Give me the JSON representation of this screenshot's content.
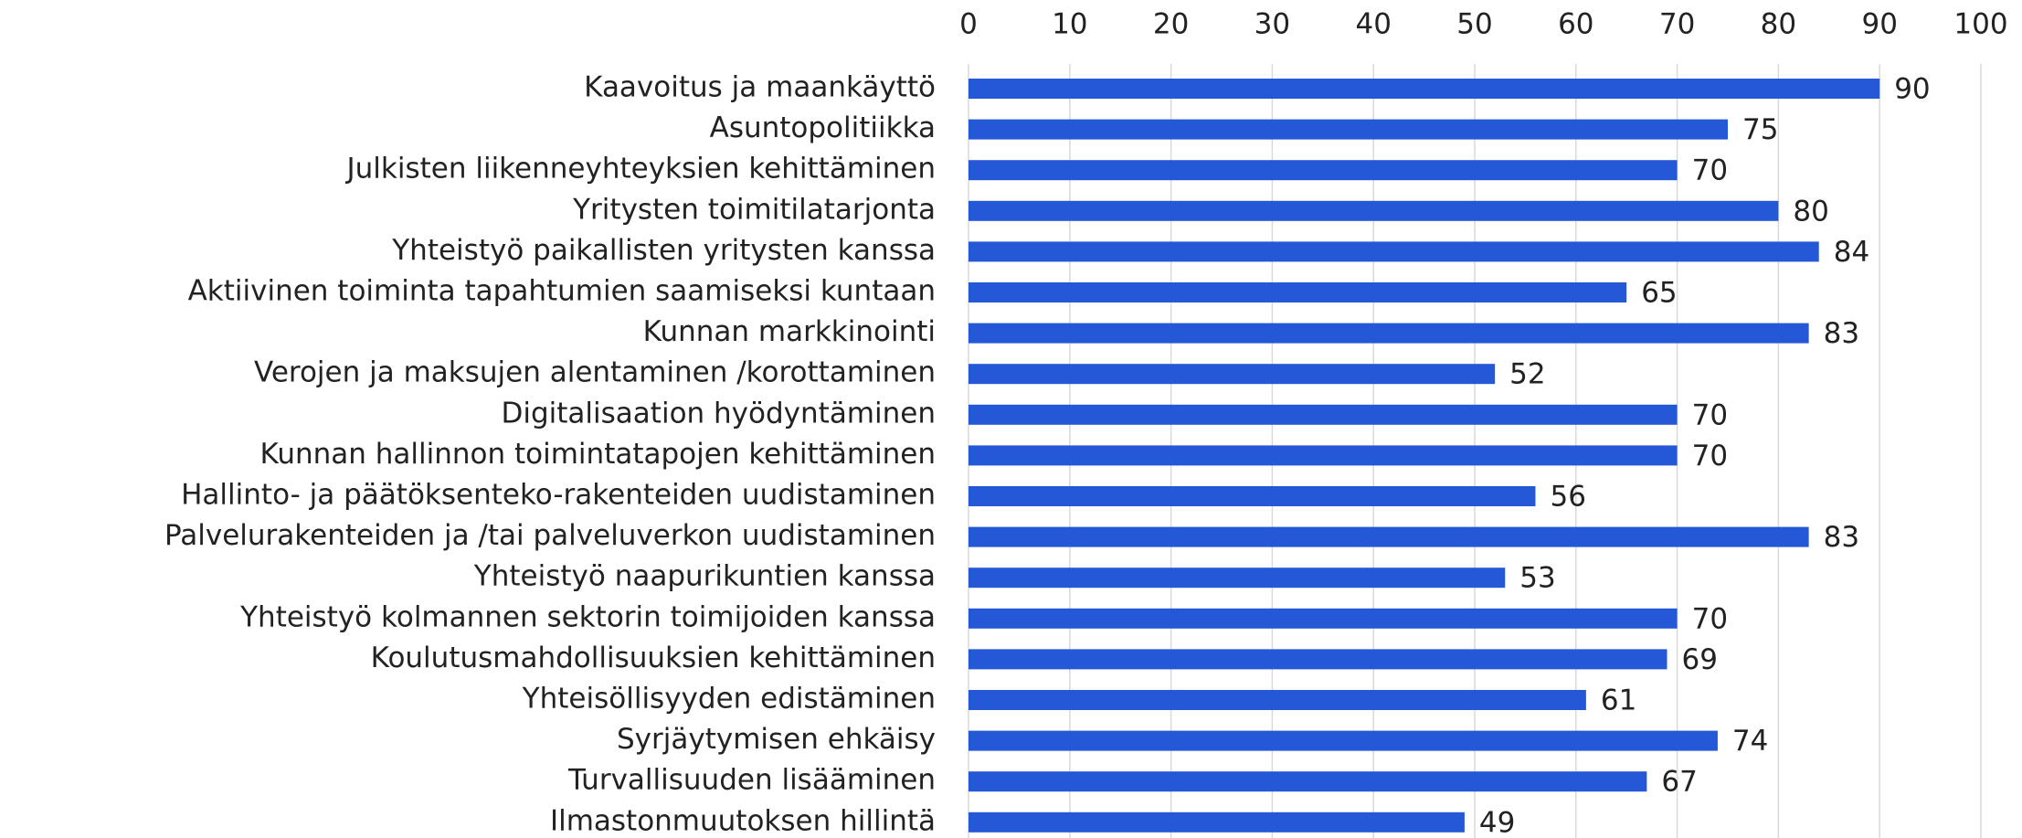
{
  "chart_data": {
    "type": "bar",
    "orientation": "horizontal",
    "categories": [
      "Kaavoitus ja maankäyttö",
      "Asuntopolitiikka",
      "Julkisten liikenneyhteyksien kehittäminen",
      "Yritysten toimitilatarjonta",
      "Yhteistyö paikallisten yritysten kanssa",
      "Aktiivinen toiminta tapahtumien saamiseksi kuntaan",
      "Kunnan markkinointi",
      "Verojen ja maksujen alentaminen /korottaminen",
      "Digitalisaation hyödyntäminen",
      "Kunnan hallinnon toimintatapojen kehittäminen",
      "Hallinto- ja päätöksenteko-rakenteiden uudistaminen",
      "Palvelurakenteiden ja /tai palveluverkon uudistaminen",
      "Yhteistyö naapurikuntien kanssa",
      "Yhteistyö kolmannen sektorin toimijoiden kanssa",
      "Koulutusmahdollisuuksien kehittäminen",
      "Yhteisöllisyyden edistäminen",
      "Syrjäytymisen ehkäisy",
      "Turvallisuuden lisääminen",
      "Ilmastonmuutoksen hillintä"
    ],
    "values": [
      90,
      75,
      70,
      80,
      84,
      65,
      83,
      52,
      70,
      70,
      56,
      83,
      53,
      70,
      69,
      61,
      74,
      67,
      49
    ],
    "color": "#2558d6",
    "xlim": [
      0,
      100
    ],
    "xticks": [
      0,
      10,
      20,
      30,
      40,
      50,
      60,
      70,
      80,
      90,
      100
    ],
    "grid": true
  }
}
